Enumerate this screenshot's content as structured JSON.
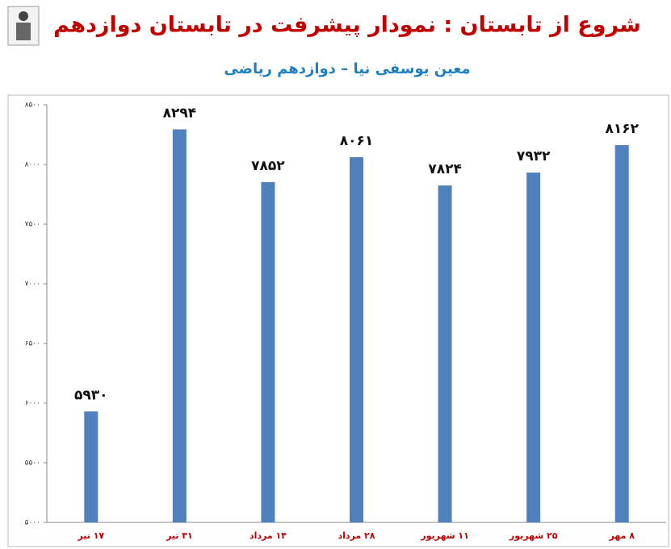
{
  "chart_data": {
    "type": "bar",
    "title": "شروع از تابستان : نمودار پیشرفت در تابستان دوازدهم",
    "subtitle": "معین یوسفی نیا – دوازدهم ریاضی",
    "categories": [
      "۱۷ تیر",
      "۳۱ تیر",
      "۱۴ مرداد",
      "۲۸ مرداد",
      "۱۱ شهریور",
      "۲۵ شهریور",
      "۸ مهر"
    ],
    "values": [
      5930,
      8294,
      7852,
      8061,
      7824,
      7932,
      8162
    ],
    "value_labels": [
      "۵۹۳۰",
      "۸۲۹۴",
      "۷۸۵۲",
      "۸۰۶۱",
      "۷۸۲۴",
      "۷۹۳۲",
      "۸۱۶۲"
    ],
    "color": "#4f81bd",
    "ylim": [
      5000,
      8500
    ],
    "yticks": [
      {
        "value": 5000,
        "label": "۵۰۰۰"
      },
      {
        "value": 5500,
        "label": "۵۵۰۰"
      },
      {
        "value": 6000,
        "label": "۶۰۰۰"
      },
      {
        "value": 6500,
        "label": "۶۵۰۰"
      },
      {
        "value": 7000,
        "label": "۷۰۰۰"
      },
      {
        "value": 7500,
        "label": "۷۵۰۰"
      },
      {
        "value": 8000,
        "label": "۸۰۰۰"
      },
      {
        "value": 8500,
        "label": "۸۵۰۰"
      }
    ],
    "grid": false
  }
}
